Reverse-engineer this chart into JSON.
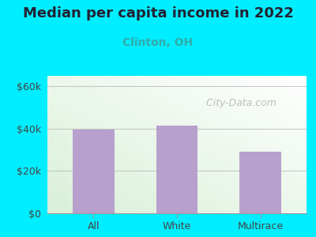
{
  "title": "Median per capita income in 2022",
  "subtitle": "Clinton, OH",
  "categories": [
    "All",
    "White",
    "Multirace"
  ],
  "values": [
    39500,
    41500,
    29000
  ],
  "bar_color": "#b8a0cc",
  "title_color": "#222233",
  "subtitle_color": "#33aaaa",
  "outer_bg": "#00eeff",
  "plot_bg_topleft": "#d8eed8",
  "plot_bg_topright": "#f5fff5",
  "plot_bg_bottom": "#ffffff",
  "yticks": [
    0,
    20000,
    40000,
    60000
  ],
  "ytick_labels": [
    "$0",
    "$20k",
    "$40k",
    "$60k"
  ],
  "ylim": [
    0,
    65000
  ],
  "xlim": [
    -0.55,
    2.55
  ],
  "watermark": " City-Data.com",
  "title_fontsize": 13,
  "subtitle_fontsize": 10,
  "tick_label_fontsize": 9,
  "watermark_fontsize": 9
}
